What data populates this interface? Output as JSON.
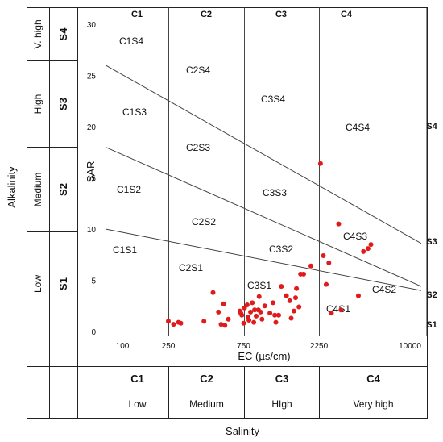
{
  "chart_data": {
    "type": "scatter",
    "xlabel": "EC (µs/cm)",
    "ylabel": "SAR",
    "x_axis_left_label": "Alkalinity",
    "x_axis_bottom_label": "Salinity",
    "xscale": "log",
    "xlim": [
      100,
      10000
    ],
    "ylim": [
      0,
      30
    ],
    "x_ticks": [
      "100",
      "250",
      "750",
      "2250",
      "10000"
    ],
    "y_ticks": [
      "0",
      "5",
      "10",
      "15",
      "20",
      "25",
      "30"
    ],
    "grid": false,
    "legend": "none",
    "marker_color": "#e01b1b",
    "top_classes": [
      "C1",
      "C2",
      "C3",
      "C4"
    ],
    "bottom_classes": {
      "codes": [
        "C1",
        "C2",
        "C3",
        "C4"
      ],
      "levels": [
        "Low",
        "Medium",
        "HIgh",
        "Very high"
      ]
    },
    "left_classes": {
      "codes": [
        "S4",
        "S3",
        "S2",
        "S1"
      ],
      "levels": [
        "V. high",
        "High",
        "Medium",
        "Low"
      ]
    },
    "right_labels": [
      "S4",
      "S3",
      "S2",
      "S1"
    ],
    "class_boundaries_ec": [
      250,
      750,
      2250
    ],
    "region_labels": [
      "C1S4",
      "C2S4",
      "C3S4",
      "C4S4",
      "C1S3",
      "C2S3",
      "C3S3",
      "C4S3",
      "C1S2",
      "C2S2",
      "C3S2",
      "C4S2",
      "C1S1",
      "C2S1",
      "C3S1",
      "C4S1"
    ],
    "series": [
      {
        "x": [
          250,
          270,
          290,
          300,
          420,
          480,
          540,
          520,
          570,
          560,
          600,
          710,
          730,
          760,
          790,
          800,
          810,
          830,
          850,
          880,
          870,
          720,
          750,
          900,
          930,
          940,
          960,
          980,
          1020,
          1100,
          1150,
          1180,
          1200,
          1250,
          1300,
          1400,
          1470,
          1500,
          1560,
          1600,
          1620,
          1680,
          1720,
          1800,
          2000,
          2300,
          2400,
          2500,
          2600,
          2700,
          3000,
          3100,
          4000,
          4300,
          4600,
          4800
        ],
        "y": [
          1.0,
          0.7,
          0.9,
          0.8,
          1.0,
          3.8,
          0.7,
          1.9,
          0.6,
          2.7,
          1.2,
          2.0,
          1.6,
          2.3,
          2.6,
          1.4,
          1.1,
          1.9,
          2.8,
          2.1,
          0.9,
          1.8,
          0.8,
          1.5,
          2.1,
          3.4,
          1.9,
          1.2,
          2.5,
          1.8,
          2.8,
          1.6,
          0.9,
          1.6,
          4.4,
          3.5,
          3.0,
          1.3,
          2.0,
          3.3,
          4.2,
          2.4,
          5.6,
          5.6,
          6.4,
          16.4,
          7.4,
          4.6,
          6.7,
          1.8,
          10.5,
          2.1,
          3.5,
          7.8,
          8.1,
          8.5
        ]
      }
    ]
  }
}
